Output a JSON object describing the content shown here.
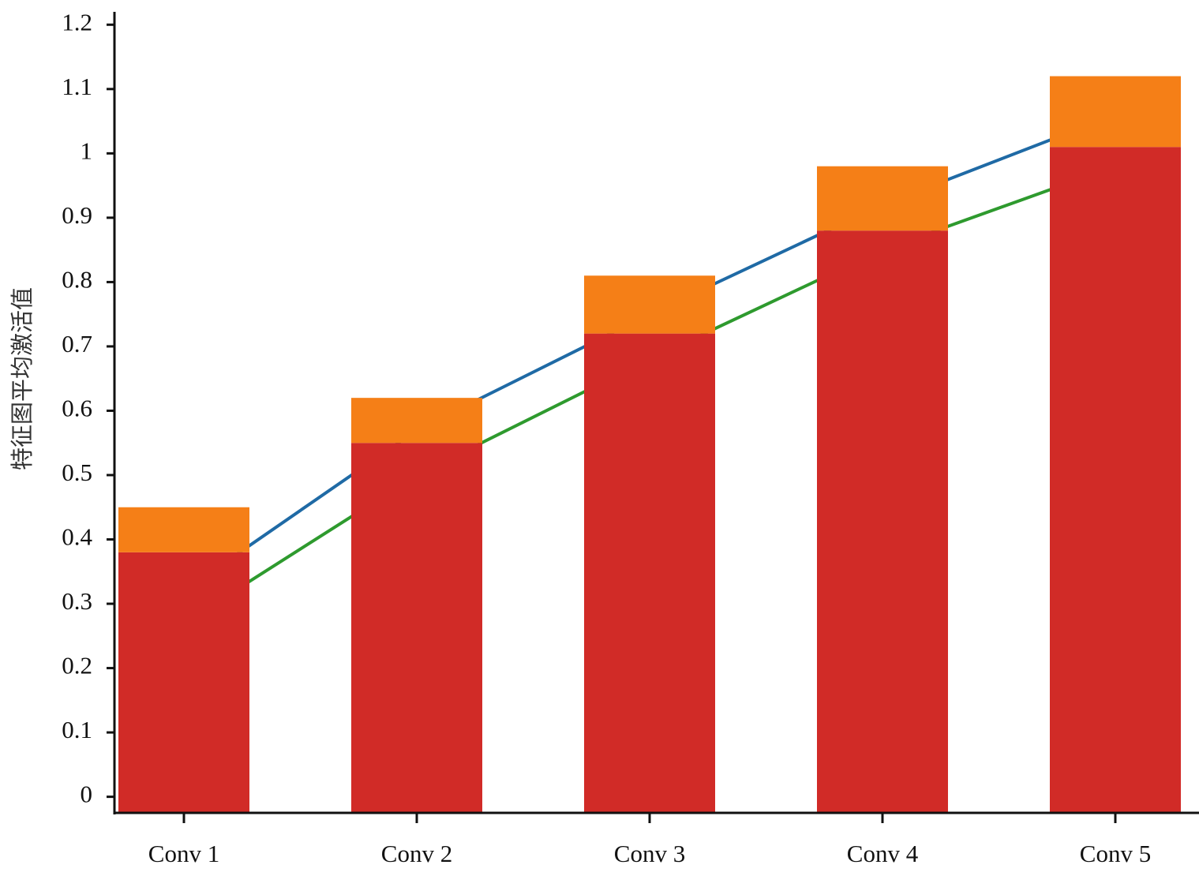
{
  "chart_data": {
    "type": "bar",
    "stacked": true,
    "y_label": "特征图平均激活值",
    "categories": [
      "Conv 1",
      "Conv 2",
      "Conv 3",
      "Conv 4",
      "Conv 5"
    ],
    "series": [
      {
        "type": "line",
        "color": "#1f6aa5",
        "values": [
          0.32,
          0.57,
          0.75,
          0.92,
          1.06
        ]
      },
      {
        "type": "line",
        "color": "#2e9a2e",
        "values": [
          0.27,
          0.5,
          0.68,
          0.85,
          0.98
        ]
      },
      {
        "type": "bar",
        "color": "#d12b27",
        "values": [
          0.38,
          0.55,
          0.72,
          0.88,
          1.01
        ]
      },
      {
        "type": "bar",
        "color": "#f57f17",
        "values": [
          0.07,
          0.07,
          0.09,
          0.1,
          0.11
        ]
      }
    ],
    "ylim": [
      -0.025,
      1.22
    ],
    "yticks": [
      0,
      0.1,
      0.2,
      0.3,
      0.4,
      0.5,
      0.6,
      0.7,
      0.8,
      0.9,
      1,
      1.1,
      1.2
    ],
    "grid": false
  }
}
